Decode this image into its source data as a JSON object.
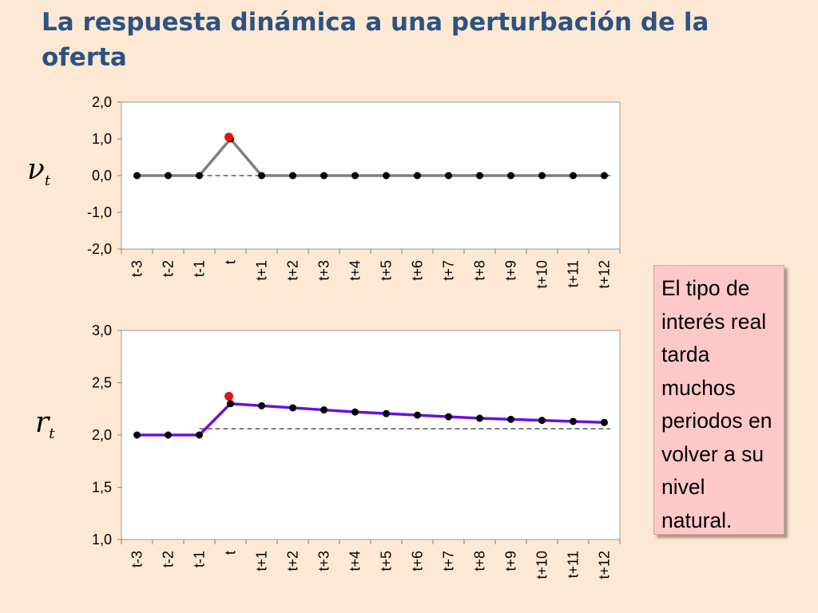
{
  "title": "La respuesta dinámica a una perturbación de la oferta",
  "callout": "El tipo de interés real tarda muchos periodos en volver a su nivel natural.",
  "chart_data": [
    {
      "type": "line",
      "variable_symbol": "ν",
      "variable_subscript": "t",
      "categories": [
        "t-3",
        "t-2",
        "t-1",
        "t",
        "t+1",
        "t+2",
        "t+3",
        "t+4",
        "t+5",
        "t+6",
        "t+7",
        "t+8",
        "t+9",
        "t+10",
        "t+11",
        "t+12"
      ],
      "values": [
        0,
        0,
        0,
        1,
        0,
        0,
        0,
        0,
        0,
        0,
        0,
        0,
        0,
        0,
        0,
        0
      ],
      "ylim": [
        -2,
        2
      ],
      "yticks": [
        "2,0",
        "1,0",
        "0,0",
        "-1,0",
        "-2,0"
      ],
      "yticks_values": [
        2,
        1,
        0,
        -1,
        -2
      ],
      "baseline": 0,
      "highlight_point": {
        "category": "t",
        "value": 1.05
      },
      "line_color": "#7f7f7f",
      "marker_color": "#000000",
      "highlight_color": "#e81010",
      "grid": false
    },
    {
      "type": "line",
      "variable_symbol": "r",
      "variable_subscript": "t",
      "categories": [
        "t-3",
        "t-2",
        "t-1",
        "t",
        "t+1",
        "t+2",
        "t+3",
        "t+4",
        "t+5",
        "t+6",
        "t+7",
        "t+8",
        "t+9",
        "t+10",
        "t+11",
        "t+12"
      ],
      "values": [
        2.0,
        2.0,
        2.0,
        2.3,
        2.28,
        2.26,
        2.24,
        2.22,
        2.205,
        2.19,
        2.175,
        2.16,
        2.15,
        2.14,
        2.13,
        2.12
      ],
      "ylim": [
        1,
        3
      ],
      "yticks": [
        "3,0",
        "2,5",
        "2,0",
        "1,5",
        "1,0"
      ],
      "yticks_values": [
        3,
        2.5,
        2,
        1.5,
        1
      ],
      "baseline": 2.06,
      "highlight_point": {
        "category": "t",
        "value": 2.37
      },
      "line_color": "#6a0fe0",
      "marker_color": "#000000",
      "highlight_color": "#e81010",
      "grid": false
    }
  ]
}
